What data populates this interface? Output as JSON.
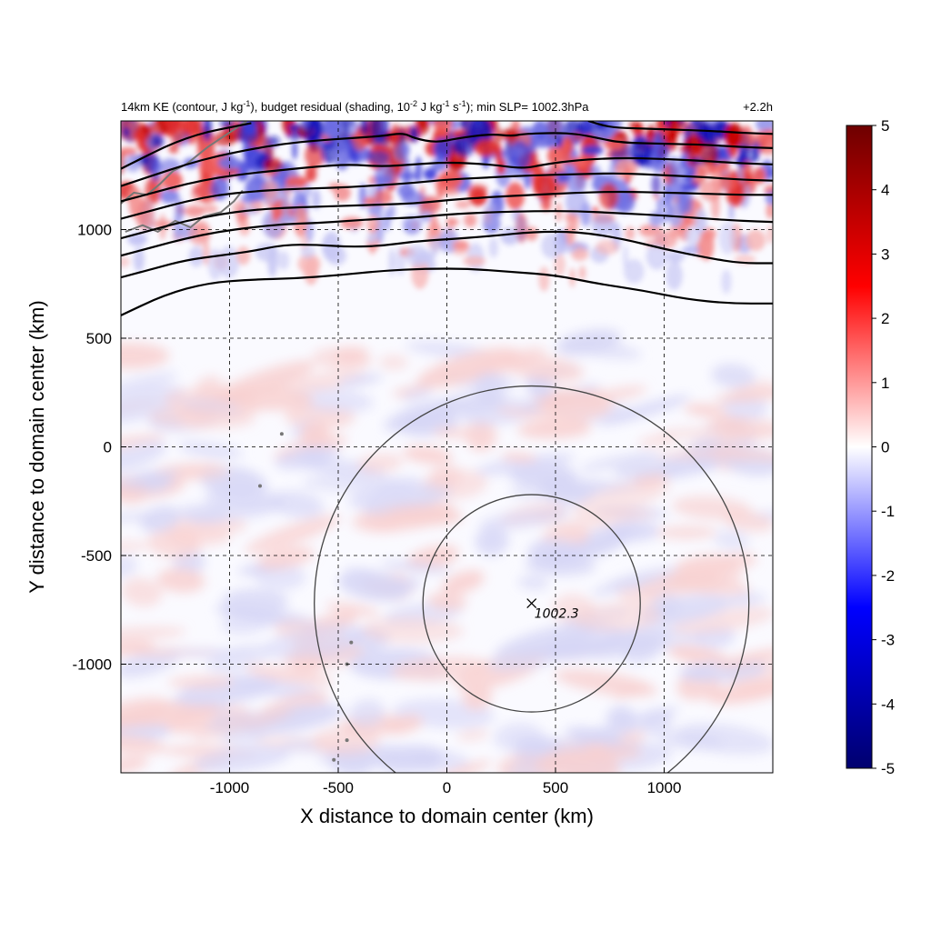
{
  "chart_data": {
    "type": "heatmap",
    "title": {
      "t1": "14km KE (contour, J kg",
      "s1": "-1",
      "t2": "), budget residual (shading, 10",
      "s2": "-2",
      "t3": " J kg",
      "s3": "-1",
      "t4": " s",
      "s4": "-1",
      "t5": "); min SLP= 1002.3hPa"
    },
    "time_label": "+2.2h",
    "xlabel": "X distance to domain center (km)",
    "ylabel": "Y distance to domain center (km)",
    "xlim": [
      -1500,
      1500
    ],
    "ylim": [
      -1500,
      1500
    ],
    "xticks": [
      -1000,
      -500,
      0,
      500,
      1000
    ],
    "yticks": [
      -1000,
      -500,
      0,
      500,
      1000
    ],
    "grid": true,
    "colorbar": {
      "min": -5,
      "max": 5,
      "ticks": [
        5,
        4,
        3,
        2,
        1,
        0,
        -1,
        -2,
        -3,
        -4,
        -5
      ],
      "colormap": "blue-white-red",
      "colors": [
        "#00006e",
        "#0000ff",
        "#ffffff",
        "#ff0000",
        "#6e0000"
      ]
    },
    "storm_center": {
      "x": 390,
      "y": -720,
      "label": "1002.3"
    },
    "range_rings_km": [
      500,
      1000
    ],
    "ke_contours": [
      [
        [
          -1500,
          605
        ],
        [
          -1300,
          700
        ],
        [
          -1100,
          755
        ],
        [
          -900,
          770
        ],
        [
          -700,
          775
        ],
        [
          -500,
          790
        ],
        [
          -300,
          810
        ],
        [
          -100,
          820
        ],
        [
          100,
          820
        ],
        [
          300,
          805
        ],
        [
          500,
          790
        ],
        [
          700,
          750
        ],
        [
          900,
          720
        ],
        [
          1100,
          680
        ],
        [
          1300,
          660
        ],
        [
          1500,
          660
        ]
      ],
      [
        [
          -1500,
          780
        ],
        [
          -1350,
          820
        ],
        [
          -1200,
          860
        ],
        [
          -1050,
          880
        ],
        [
          -900,
          900
        ],
        [
          -750,
          930
        ],
        [
          -600,
          930
        ],
        [
          -450,
          920
        ],
        [
          -300,
          925
        ],
        [
          -150,
          945
        ],
        [
          0,
          955
        ],
        [
          200,
          970
        ],
        [
          400,
          990
        ],
        [
          600,
          990
        ],
        [
          800,
          960
        ],
        [
          1000,
          910
        ],
        [
          1200,
          870
        ],
        [
          1350,
          845
        ],
        [
          1500,
          845
        ]
      ],
      [
        [
          -1500,
          880
        ],
        [
          -1350,
          920
        ],
        [
          -1200,
          960
        ],
        [
          -1050,
          990
        ],
        [
          -900,
          1010
        ],
        [
          -750,
          1025
        ],
        [
          -600,
          1030
        ],
        [
          -450,
          1040
        ],
        [
          -300,
          1050
        ],
        [
          -150,
          1055
        ],
        [
          0,
          1070
        ],
        [
          200,
          1080
        ],
        [
          400,
          1085
        ],
        [
          600,
          1085
        ],
        [
          800,
          1075
        ],
        [
          1000,
          1065
        ],
        [
          1200,
          1050
        ],
        [
          1350,
          1040
        ],
        [
          1500,
          1035
        ]
      ],
      [
        [
          -1500,
          960
        ],
        [
          -1350,
          1000
        ],
        [
          -1200,
          1040
        ],
        [
          -1050,
          1070
        ],
        [
          -900,
          1090
        ],
        [
          -750,
          1100
        ],
        [
          -600,
          1105
        ],
        [
          -450,
          1110
        ],
        [
          -300,
          1115
        ],
        [
          -150,
          1120
        ],
        [
          0,
          1135
        ],
        [
          200,
          1150
        ],
        [
          400,
          1160
        ],
        [
          600,
          1170
        ],
        [
          800,
          1175
        ],
        [
          1000,
          1170
        ],
        [
          1200,
          1165
        ],
        [
          1350,
          1160
        ],
        [
          1500,
          1160
        ]
      ],
      [
        [
          -1500,
          1050
        ],
        [
          -1350,
          1090
        ],
        [
          -1200,
          1130
        ],
        [
          -1050,
          1160
        ],
        [
          -900,
          1175
        ],
        [
          -750,
          1185
        ],
        [
          -600,
          1190
        ],
        [
          -450,
          1195
        ],
        [
          -300,
          1205
        ],
        [
          -150,
          1215
        ],
        [
          0,
          1230
        ],
        [
          200,
          1240
        ],
        [
          400,
          1250
        ],
        [
          600,
          1255
        ],
        [
          800,
          1260
        ],
        [
          1000,
          1250
        ],
        [
          1200,
          1240
        ],
        [
          1350,
          1230
        ],
        [
          1500,
          1225
        ]
      ],
      [
        [
          -1500,
          1130
        ],
        [
          -1350,
          1170
        ],
        [
          -1200,
          1210
        ],
        [
          -1050,
          1240
        ],
        [
          -900,
          1260
        ],
        [
          -750,
          1275
        ],
        [
          -600,
          1290
        ],
        [
          -450,
          1300
        ],
        [
          -300,
          1290
        ],
        [
          -150,
          1300
        ],
        [
          0,
          1310
        ],
        [
          200,
          1300
        ],
        [
          350,
          1280
        ],
        [
          450,
          1300
        ],
        [
          600,
          1320
        ],
        [
          800,
          1330
        ],
        [
          1000,
          1325
        ],
        [
          1200,
          1315
        ],
        [
          1350,
          1305
        ],
        [
          1500,
          1300
        ]
      ],
      [
        [
          -1500,
          1200
        ],
        [
          -1350,
          1250
        ],
        [
          -1200,
          1300
        ],
        [
          -1050,
          1340
        ],
        [
          -900,
          1370
        ],
        [
          -750,
          1395
        ],
        [
          -600,
          1410
        ],
        [
          -450,
          1420
        ],
        [
          -300,
          1430
        ],
        [
          -200,
          1445
        ],
        [
          -150,
          1420
        ],
        [
          -50,
          1400
        ],
        [
          50,
          1420
        ],
        [
          200,
          1440
        ],
        [
          300,
          1430
        ],
        [
          350,
          1440
        ],
        [
          500,
          1445
        ],
        [
          600,
          1440
        ],
        [
          700,
          1420
        ],
        [
          800,
          1400
        ],
        [
          1000,
          1395
        ],
        [
          1200,
          1390
        ],
        [
          1350,
          1380
        ],
        [
          1500,
          1375
        ]
      ],
      [
        [
          -1500,
          1280
        ],
        [
          -1400,
          1330
        ],
        [
          -1300,
          1380
        ],
        [
          -1200,
          1420
        ],
        [
          -1100,
          1450
        ],
        [
          -1000,
          1470
        ],
        [
          -900,
          1490
        ]
      ],
      [
        [
          650,
          1500
        ],
        [
          750,
          1470
        ],
        [
          900,
          1465
        ],
        [
          1050,
          1460
        ],
        [
          1200,
          1455
        ],
        [
          1350,
          1445
        ],
        [
          1500,
          1440
        ]
      ]
    ]
  }
}
